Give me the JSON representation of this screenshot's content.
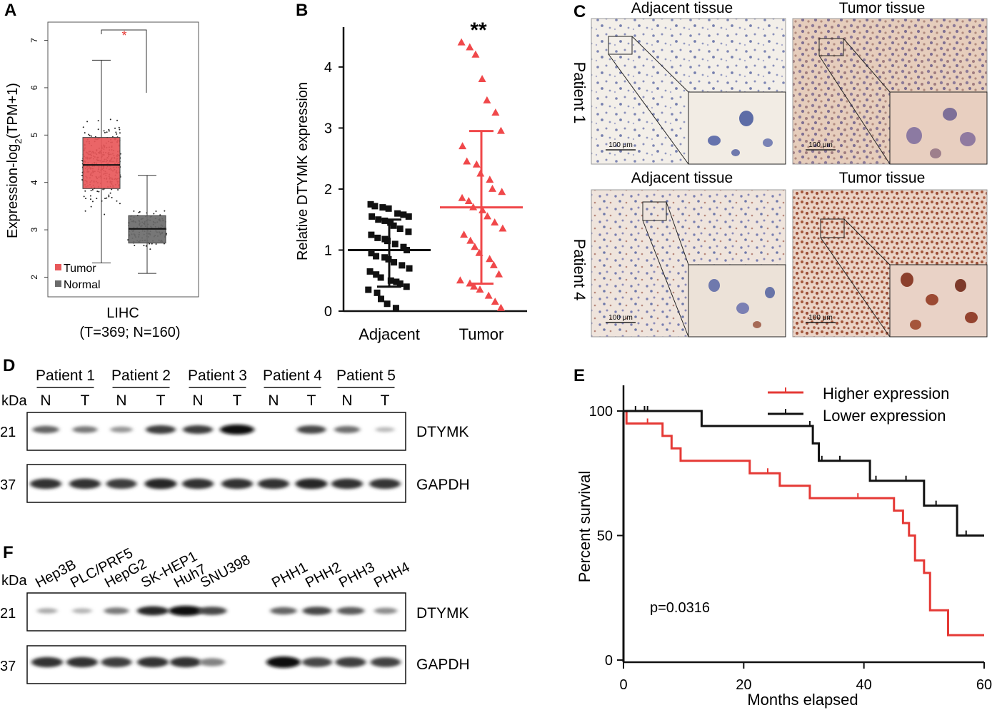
{
  "panels": {
    "A": {
      "letter": "A",
      "ylabel_prefix": "Expression-log",
      "ylabel_sub": "2",
      "ylabel_suffix": "(TPM+1)",
      "yticks": [
        "2",
        "3",
        "4",
        "5",
        "6",
        "7"
      ],
      "sig": "*",
      "legend": [
        "Tumor",
        "Normal"
      ],
      "xlabel": "LIHC",
      "xsub": "(T=369; N=160)",
      "colors": {
        "tumor": "#e8585a",
        "normal": "#6b6b6b",
        "sig": "#e53935"
      }
    },
    "B": {
      "letter": "B",
      "ylabel": "Relative DTYMK expression",
      "yticks": [
        "0",
        "1",
        "2",
        "3",
        "4"
      ],
      "categories": [
        "Adjacent",
        "Tumor"
      ],
      "sig": "**",
      "colors": {
        "adjacent": "#111111",
        "tumor": "#f0484a"
      }
    },
    "C": {
      "letter": "C",
      "col_labels": [
        "Adjacent tissue",
        "Tumor tissue"
      ],
      "row_labels": [
        "Patient 1",
        "Patient 4"
      ],
      "scale": "100 μm"
    },
    "D": {
      "letter": "D",
      "kda": "kDa",
      "patients": [
        "Patient 1",
        "Patient 2",
        "Patient 3",
        "Patient 4",
        "Patient 5"
      ],
      "lane_labels": [
        "N",
        "T",
        "N",
        "T",
        "N",
        "T",
        "N",
        "T",
        "N",
        "T"
      ],
      "markers": [
        "21",
        "37"
      ],
      "bands": [
        "DTYMK",
        "GAPDH"
      ],
      "dtymk_intensity": [
        0.55,
        0.45,
        0.3,
        0.75,
        0.75,
        1.0,
        0.0,
        0.7,
        0.5,
        0.12
      ],
      "gapdh_intensity": [
        0.8,
        0.8,
        0.75,
        0.85,
        0.8,
        0.8,
        0.8,
        0.85,
        0.8,
        0.78
      ]
    },
    "E": {
      "letter": "E",
      "legend": [
        "Higher expression",
        "Lower expression"
      ],
      "ylabel": "Percent survival",
      "xlabel": "Months elapsed",
      "xticks": [
        "0",
        "20",
        "40",
        "60"
      ],
      "yticks": [
        "0",
        "50",
        "100"
      ],
      "pvalue": "p=0.0316",
      "colors": {
        "high": "#e53935",
        "low": "#111111"
      }
    },
    "F": {
      "letter": "F",
      "kda": "kDa",
      "cell_lines": [
        "Hep3B",
        "PLC/PRF5",
        "HepG2",
        "SK-HEP1",
        "Huh7",
        "SNU398",
        "PHH1",
        "PHH2",
        "PHH3",
        "PHH4"
      ],
      "markers": [
        "21",
        "37"
      ],
      "bands": [
        "DTYMK",
        "GAPDH"
      ],
      "dtymk_intensity": [
        0.2,
        0.15,
        0.45,
        0.85,
        1.0,
        0.7,
        0.55,
        0.7,
        0.6,
        0.35
      ],
      "gapdh_intensity": [
        0.8,
        0.8,
        0.75,
        0.8,
        0.8,
        0.4,
        1.0,
        0.7,
        0.75,
        0.72
      ]
    }
  },
  "chart_data": [
    {
      "type": "box",
      "title": "",
      "ylabel": "Expression-log2(TPM+1)",
      "ylim": [
        1.6,
        7.4
      ],
      "categories": [
        "Tumor",
        "Normal"
      ],
      "series": [
        {
          "name": "Tumor",
          "whisker_low": 2.3,
          "q1": 3.87,
          "median": 4.37,
          "q3": 4.95,
          "whisker_high": 6.58
        },
        {
          "name": "Normal",
          "whisker_low": 2.08,
          "q1": 2.72,
          "median": 3.02,
          "q3": 3.3,
          "whisker_high": 4.15
        }
      ]
    },
    {
      "type": "scatter",
      "title": "",
      "ylabel": "Relative DTYMK expression",
      "ylim": [
        0,
        4.7
      ],
      "categories": [
        "Adjacent",
        "Tumor"
      ],
      "series": [
        {
          "name": "Adjacent",
          "mean": 1.0,
          "sd_low": 0.4,
          "sd_high": 1.5,
          "values": [
            1.75,
            1.72,
            1.7,
            1.68,
            1.6,
            1.58,
            1.55,
            1.55,
            1.5,
            1.48,
            1.45,
            1.4,
            1.35,
            1.3,
            1.25,
            1.2,
            1.18,
            1.15,
            1.1,
            1.05,
            1.0,
            0.95,
            0.9,
            0.88,
            0.85,
            0.8,
            0.75,
            0.7,
            0.65,
            0.6,
            0.55,
            0.5,
            0.48,
            0.45,
            0.4,
            0.35,
            0.3,
            0.2,
            0.12,
            0.05
          ]
        },
        {
          "name": "Tumor",
          "mean": 1.7,
          "sd_low": 0.45,
          "sd_high": 2.95,
          "values": [
            4.4,
            4.32,
            4.2,
            3.8,
            3.45,
            3.25,
            2.95,
            2.7,
            2.45,
            2.4,
            2.25,
            2.15,
            2.0,
            1.95,
            1.85,
            1.8,
            1.7,
            1.65,
            1.55,
            1.45,
            1.35,
            1.25,
            1.15,
            1.05,
            0.95,
            0.85,
            0.75,
            0.6,
            0.5,
            0.45,
            0.4,
            0.35,
            0.25,
            0.15,
            0.05
          ]
        }
      ]
    },
    {
      "type": "line",
      "title": "",
      "xlabel": "Months elapsed",
      "ylabel": "Percent survival",
      "xlim": [
        0,
        60
      ],
      "ylim": [
        0,
        100
      ],
      "series": [
        {
          "name": "Higher expression",
          "x": [
            0,
            0.5,
            2.5,
            6.5,
            8,
            9.5,
            21,
            26,
            31,
            45,
            46.5,
            47.5,
            48.5,
            50,
            51,
            54,
            60
          ],
          "y": [
            100,
            95,
            95,
            90,
            85,
            80,
            75,
            70,
            65,
            60,
            55,
            50,
            40,
            35,
            20,
            10,
            10
          ]
        },
        {
          "name": "Lower expression",
          "x": [
            0,
            13,
            31.5,
            32.5,
            41,
            50,
            55.5,
            60
          ],
          "y": [
            100,
            94,
            87,
            80,
            72,
            62,
            50,
            50
          ]
        }
      ],
      "annotations": [
        "p=0.0316"
      ]
    }
  ]
}
